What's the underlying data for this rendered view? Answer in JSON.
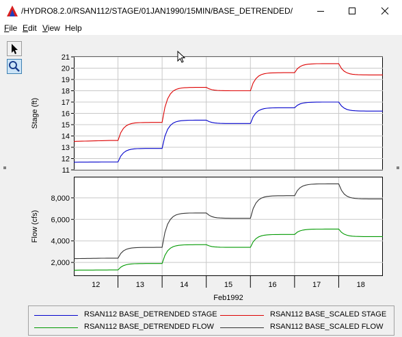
{
  "window": {
    "title": "/HYDRO8.2.0/RSAN112/STAGE/01JAN1990/15MIN/BASE_DETRENDED/",
    "icon": "hec-dss-triangle-icon"
  },
  "menu": [
    {
      "mnemonic": "F",
      "rest": "ile"
    },
    {
      "mnemonic": "E",
      "rest": "dit"
    },
    {
      "mnemonic": "V",
      "rest": "iew"
    },
    {
      "mnemonic": "",
      "rest": "Help"
    }
  ],
  "toolbar": {
    "pointer": "arrow-pointer-icon",
    "zoom": "magnifier-zoom-icon"
  },
  "colors": {
    "detrended_stage": "#0000cc",
    "scaled_stage": "#dd0000",
    "detrended_flow": "#009900",
    "scaled_flow": "#333333"
  },
  "chart_data": [
    {
      "type": "line",
      "ylabel": "Stage (ft)",
      "ylim": [
        11,
        21
      ],
      "yticks": [
        "11",
        "12",
        "13",
        "14",
        "15",
        "16",
        "17",
        "18",
        "19",
        "20",
        "21"
      ],
      "x": [
        "12",
        "13",
        "14",
        "15",
        "16",
        "17",
        "18"
      ],
      "grid": true,
      "series": [
        {
          "name": "RSAN112 BASE_SCALED STAGE",
          "color": "#dd0000",
          "values": [
            13.6,
            15.2,
            18.3,
            18.0,
            19.6,
            20.4,
            19.4
          ]
        },
        {
          "name": "RSAN112 BASE_DETRENDED STAGE",
          "color": "#0000cc",
          "values": [
            11.7,
            12.9,
            15.4,
            15.1,
            16.5,
            17.0,
            16.2
          ]
        }
      ]
    },
    {
      "type": "line",
      "ylabel": "Flow (cfs)",
      "ylim": [
        800,
        9900
      ],
      "yticks": [
        "2,000",
        "4,000",
        "6,000",
        "8,000"
      ],
      "x": [
        "12",
        "13",
        "14",
        "15",
        "16",
        "17",
        "18"
      ],
      "xlabel": "Feb1992",
      "grid": true,
      "series": [
        {
          "name": "RSAN112 BASE_SCALED FLOW",
          "color": "#333333",
          "values": [
            2400,
            3400,
            6600,
            6100,
            8200,
            9300,
            7900
          ]
        },
        {
          "name": "RSAN112 BASE_DETRENDED FLOW",
          "color": "#009900",
          "values": [
            1300,
            1900,
            3650,
            3400,
            4600,
            5100,
            4400
          ]
        }
      ]
    }
  ],
  "legend": [
    {
      "label": "RSAN112 BASE_DETRENDED STAGE",
      "color": "#0000cc"
    },
    {
      "label": "RSAN112 BASE_SCALED STAGE",
      "color": "#dd0000"
    },
    {
      "label": "RSAN112 BASE_DETRENDED FLOW",
      "color": "#009900"
    },
    {
      "label": "RSAN112 BASE_SCALED FLOW",
      "color": "#333333"
    }
  ]
}
